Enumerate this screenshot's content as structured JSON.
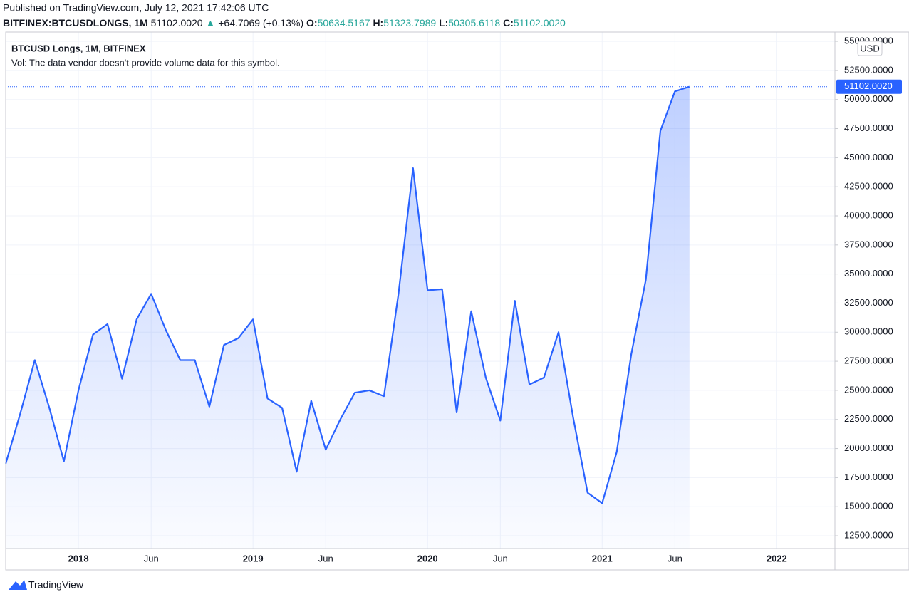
{
  "header": {
    "published": "Published on TradingView.com, July 12, 2021 17:42:06 UTC",
    "symbol": "BITFINEX:BTCUSDLONGS, 1M",
    "price": "51102.0020",
    "arrow": "▲",
    "change": "+64.7069 (+0.13%)",
    "o_label": "O:",
    "o": "50634.5167",
    "h_label": "H:",
    "h": "51323.7989",
    "l_label": "L:",
    "l": "50305.6118",
    "c_label": "C:",
    "c": "51102.0020"
  },
  "chart_data": {
    "type": "area",
    "legend_title": "BTCUSD Longs, 1M, BITFINEX",
    "note": "Vol: The data vendor doesn't provide volume data for this symbol.",
    "unit": "USD",
    "series": [
      {
        "name": "BTCUSD Longs, 1M, BITFINEX",
        "color": "#2962ff",
        "x": [
          "2017-08",
          "2017-09",
          "2017-10",
          "2017-11",
          "2017-12",
          "2018-01",
          "2018-02",
          "2018-03",
          "2018-04",
          "2018-05",
          "2018-06",
          "2018-07",
          "2018-08",
          "2018-09",
          "2018-10",
          "2018-11",
          "2018-12",
          "2019-01",
          "2019-02",
          "2019-03",
          "2019-04",
          "2019-05",
          "2019-06",
          "2019-07",
          "2019-08",
          "2019-09",
          "2019-10",
          "2019-11",
          "2019-12",
          "2020-01",
          "2020-02",
          "2020-03",
          "2020-04",
          "2020-05",
          "2020-06",
          "2020-07",
          "2020-08",
          "2020-09",
          "2020-10",
          "2020-11",
          "2020-12",
          "2021-01",
          "2021-02",
          "2021-03",
          "2021-04",
          "2021-05",
          "2021-06",
          "2021-07"
        ],
        "values": [
          18700,
          23000,
          27600,
          23500,
          18900,
          25000,
          29800,
          30700,
          26000,
          31100,
          33300,
          30200,
          27600,
          27600,
          23600,
          28900,
          29500,
          31100,
          24300,
          23500,
          18000,
          24100,
          19900,
          22500,
          24800,
          25000,
          24500,
          33300,
          44100,
          33600,
          33700,
          23100,
          31800,
          26100,
          22400,
          32700,
          25500,
          26100,
          30000,
          22700,
          16200,
          15300,
          19700,
          28100,
          34500,
          47300,
          50700,
          51102.002
        ]
      }
    ],
    "price_line": {
      "value": 51102.002,
      "label": "51102.0020"
    },
    "xlim": [
      "2017-08",
      "2022-05"
    ],
    "xticks": [
      {
        "value": "2018-01",
        "label": "2018"
      },
      {
        "value": "2018-06",
        "label": "Jun"
      },
      {
        "value": "2019-01",
        "label": "2019"
      },
      {
        "value": "2019-06",
        "label": "Jun"
      },
      {
        "value": "2020-01",
        "label": "2020"
      },
      {
        "value": "2020-06",
        "label": "Jun"
      },
      {
        "value": "2021-01",
        "label": "2021"
      },
      {
        "value": "2021-06",
        "label": "Jun"
      },
      {
        "value": "2022-01",
        "label": "2022"
      }
    ],
    "ylim": [
      11400,
      55800
    ],
    "yticks": [
      {
        "value": 12500,
        "label": "12500.0000"
      },
      {
        "value": 15000,
        "label": "15000.0000"
      },
      {
        "value": 17500,
        "label": "17500.0000"
      },
      {
        "value": 20000,
        "label": "20000.0000"
      },
      {
        "value": 22500,
        "label": "22500.0000"
      },
      {
        "value": 25000,
        "label": "25000.0000"
      },
      {
        "value": 27500,
        "label": "27500.0000"
      },
      {
        "value": 30000,
        "label": "30000.0000"
      },
      {
        "value": 32500,
        "label": "32500.0000"
      },
      {
        "value": 35000,
        "label": "35000.0000"
      },
      {
        "value": 37500,
        "label": "37500.0000"
      },
      {
        "value": 40000,
        "label": "40000.0000"
      },
      {
        "value": 42500,
        "label": "42500.0000"
      },
      {
        "value": 45000,
        "label": "45000.0000"
      },
      {
        "value": 47500,
        "label": "47500.0000"
      },
      {
        "value": 50000,
        "label": "50000.0000"
      },
      {
        "value": 52500,
        "label": "52500.0000"
      },
      {
        "value": 55000,
        "label": "55000.0000"
      }
    ],
    "grid": true
  },
  "footer": {
    "brand": "TradingView"
  }
}
